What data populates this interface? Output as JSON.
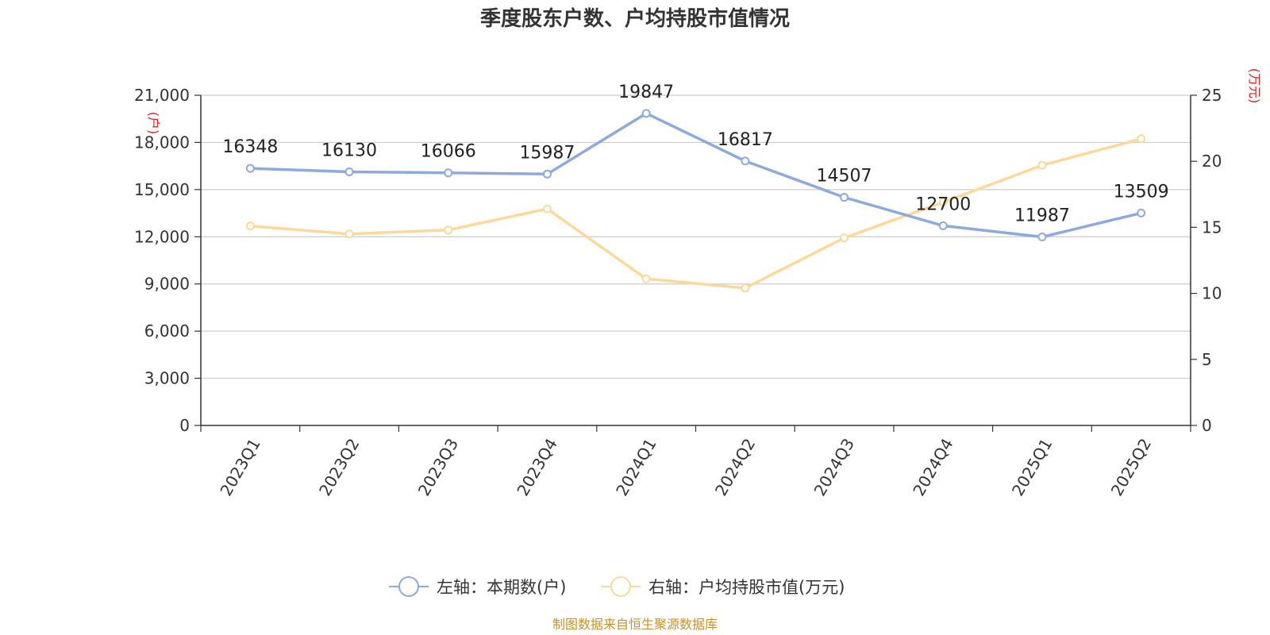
{
  "chart_data": {
    "type": "line",
    "title": "季度股东户数、户均持股市值情况",
    "categories": [
      "2023Q1",
      "2023Q2",
      "2023Q3",
      "2023Q4",
      "2024Q1",
      "2024Q2",
      "2024Q3",
      "2024Q4",
      "2025Q1",
      "2025Q2"
    ],
    "series": [
      {
        "name": "左轴：本期数(户)",
        "axis": "left",
        "color": "#8eaadb",
        "values": [
          16348,
          16130,
          16066,
          15987,
          19847,
          16817,
          14507,
          12700,
          11987,
          13509
        ],
        "labels": [
          "16348",
          "16130",
          "16066",
          "15987",
          "19847",
          "16817",
          "14507",
          "12700",
          "11987",
          "13509"
        ]
      },
      {
        "name": "右轴：户均持股市值(万元)",
        "axis": "right",
        "color": "#fcd99a",
        "values": [
          15.1,
          14.5,
          14.8,
          16.4,
          11.1,
          10.4,
          14.2,
          16.9,
          19.7,
          21.7
        ]
      }
    ],
    "y_left": {
      "unit": "(户)",
      "ylim": [
        0,
        21000
      ],
      "ticks": [
        "0",
        "3,000",
        "6,000",
        "9,000",
        "12,000",
        "15,000",
        "18,000",
        "21,000"
      ]
    },
    "y_right": {
      "unit": "(万元)",
      "ylim": [
        0,
        25
      ],
      "ticks": [
        "0",
        "5",
        "10",
        "15",
        "20",
        "25"
      ]
    },
    "grid": true,
    "legend_position": "bottom-center",
    "source": "制图数据来自恒生聚源数据库"
  }
}
